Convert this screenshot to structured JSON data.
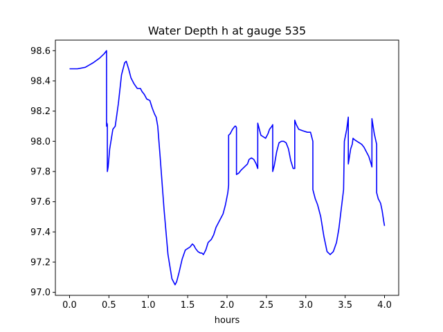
{
  "chart_data": {
    "type": "line",
    "title": "Water Depth h at gauge 535",
    "xlabel": "hours",
    "ylabel": "",
    "xlim": [
      -0.18,
      4.18
    ],
    "ylim": [
      96.98,
      98.67
    ],
    "xticks": [
      0.0,
      0.5,
      1.0,
      1.5,
      2.0,
      2.5,
      3.0,
      3.5,
      4.0
    ],
    "xtick_labels": [
      "0.0",
      "0.5",
      "1.0",
      "1.5",
      "2.0",
      "2.5",
      "3.0",
      "3.5",
      "4.0"
    ],
    "yticks": [
      97.0,
      97.2,
      97.4,
      97.6,
      97.8,
      98.0,
      98.2,
      98.4,
      98.6
    ],
    "ytick_labels": [
      "97.0",
      "97.2",
      "97.4",
      "97.6",
      "97.8",
      "98.0",
      "98.2",
      "98.4",
      "98.6"
    ],
    "grid": false,
    "legend": "none",
    "series": [
      {
        "color": "#0000ff",
        "x": [
          0.0,
          0.1,
          0.2,
          0.3,
          0.38,
          0.44,
          0.47,
          0.47,
          0.475,
          0.48,
          0.48,
          0.49,
          0.51,
          0.55,
          0.58,
          0.62,
          0.66,
          0.7,
          0.72,
          0.75,
          0.78,
          0.82,
          0.86,
          0.88,
          0.9,
          0.92,
          0.95,
          0.98,
          1.02,
          1.05,
          1.08,
          1.1,
          1.12,
          1.15,
          1.2,
          1.25,
          1.3,
          1.34,
          1.36,
          1.39,
          1.43,
          1.47,
          1.5,
          1.53,
          1.56,
          1.58,
          1.6,
          1.63,
          1.66,
          1.68,
          1.7,
          1.73,
          1.76,
          1.8,
          1.83,
          1.86,
          1.9,
          1.93,
          1.95,
          1.98,
          2.01,
          2.02,
          2.02,
          2.04,
          2.07,
          2.1,
          2.11,
          2.12,
          2.12,
          2.15,
          2.18,
          2.22,
          2.26,
          2.28,
          2.31,
          2.34,
          2.37,
          2.39,
          2.39,
          2.41,
          2.43,
          2.46,
          2.49,
          2.52,
          2.54,
          2.57,
          2.58,
          2.58,
          2.6,
          2.63,
          2.66,
          2.69,
          2.72,
          2.75,
          2.78,
          2.81,
          2.84,
          2.86,
          2.86,
          2.88,
          2.91,
          2.96,
          3.02,
          3.06,
          3.09,
          3.09,
          3.12,
          3.15,
          3.19,
          3.23,
          3.27,
          3.31,
          3.35,
          3.39,
          3.42,
          3.45,
          3.48,
          3.49,
          3.52,
          3.54,
          3.54,
          3.57,
          3.59,
          3.6,
          3.62,
          3.65,
          3.68,
          3.71,
          3.74,
          3.77,
          3.8,
          3.83,
          3.84,
          3.84,
          3.87,
          3.9,
          3.9,
          3.92,
          3.95,
          3.97,
          3.99,
          4.0
        ],
        "y": [
          98.48,
          98.48,
          98.49,
          98.52,
          98.55,
          98.58,
          98.6,
          98.1,
          98.12,
          98.11,
          97.8,
          97.83,
          97.95,
          98.08,
          98.1,
          98.25,
          98.44,
          98.52,
          98.53,
          98.48,
          98.42,
          98.38,
          98.35,
          98.35,
          98.35,
          98.33,
          98.31,
          98.28,
          98.27,
          98.22,
          98.18,
          98.16,
          98.1,
          97.9,
          97.55,
          97.25,
          97.09,
          97.05,
          97.07,
          97.13,
          97.22,
          97.28,
          97.29,
          97.3,
          97.32,
          97.31,
          97.29,
          97.27,
          97.26,
          97.26,
          97.25,
          97.28,
          97.33,
          97.35,
          97.38,
          97.43,
          97.47,
          97.5,
          97.52,
          97.58,
          97.66,
          97.71,
          98.04,
          98.05,
          98.08,
          98.1,
          98.1,
          98.09,
          97.78,
          97.79,
          97.81,
          97.83,
          97.85,
          97.88,
          97.89,
          97.88,
          97.85,
          97.82,
          98.12,
          98.08,
          98.04,
          98.03,
          98.02,
          98.05,
          98.08,
          98.1,
          98.11,
          97.8,
          97.84,
          97.93,
          97.99,
          98.0,
          98.0,
          97.99,
          97.95,
          97.87,
          97.82,
          97.82,
          98.14,
          98.11,
          98.08,
          98.07,
          98.06,
          98.06,
          98.0,
          97.68,
          97.62,
          97.58,
          97.5,
          97.37,
          97.27,
          97.25,
          97.27,
          97.33,
          97.42,
          97.55,
          97.68,
          98.0,
          98.08,
          98.16,
          97.85,
          97.95,
          97.98,
          98.02,
          98.01,
          98.0,
          97.99,
          97.98,
          97.96,
          97.93,
          97.9,
          97.85,
          97.83,
          98.15,
          98.05,
          97.98,
          97.66,
          97.62,
          97.59,
          97.54,
          97.47,
          97.44
        ]
      }
    ]
  }
}
